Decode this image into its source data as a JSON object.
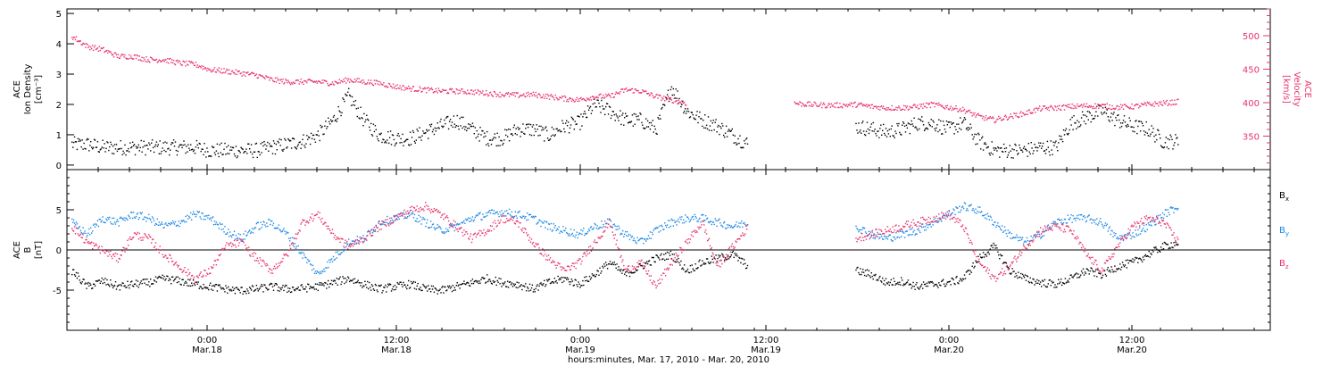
{
  "chart_data": [
    {
      "type": "scatter",
      "panel": "top",
      "ylabel_left": [
        "ACE",
        "Ion Density",
        "[cm⁻³]"
      ],
      "ylabel_right": [
        "ACE",
        "Velocity",
        "[km/s]"
      ],
      "ylim_left": [
        0,
        5
      ],
      "yticks_left": [
        0,
        1,
        2,
        3,
        4,
        5
      ],
      "ylim_right": [
        300,
        540
      ],
      "yticks_right": [
        350,
        400,
        450,
        500
      ],
      "colors": {
        "density": "#000000",
        "velocity": "#e8336a"
      },
      "series": [
        {
          "name": "Ion Density",
          "axis": "left",
          "x": [
            0,
            1,
            2,
            3,
            4,
            5,
            6,
            7,
            8,
            9,
            10,
            11,
            12,
            13,
            14,
            15,
            16,
            17,
            18,
            19,
            20,
            21,
            22,
            23,
            24,
            25,
            26,
            27,
            28,
            29,
            30,
            31,
            32,
            33,
            34,
            35,
            36,
            37,
            38,
            39,
            40,
            41,
            42,
            43,
            44,
            45,
            46,
            47,
            48,
            49,
            50,
            51,
            52,
            53,
            54,
            55,
            56,
            57,
            58,
            59,
            60,
            61,
            62,
            63,
            64,
            65,
            66,
            67,
            68,
            69,
            70,
            71,
            72
          ],
          "values": [
            0.7,
            0.7,
            0.6,
            0.6,
            0.6,
            0.6,
            0.6,
            0.6,
            0.6,
            0.5,
            0.5,
            0.5,
            0.5,
            0.6,
            0.7,
            0.8,
            1.0,
            1.5,
            2.3,
            1.5,
            1.0,
            0.9,
            0.9,
            1.1,
            1.3,
            1.5,
            1.2,
            0.9,
            0.9,
            1.2,
            1.2,
            1.0,
            1.3,
            1.4,
            2.0,
            1.8,
            1.5,
            1.5,
            1.2,
            2.6,
            1.8,
            1.5,
            1.3,
            1.0,
            0.7,
            null,
            null,
            null,
            null,
            null,
            null,
            1.3,
            1.2,
            1.1,
            1.2,
            1.4,
            1.4,
            1.2,
            1.4,
            0.8,
            0.5,
            0.5,
            0.5,
            0.6,
            0.6,
            1.4,
            1.6,
            1.8,
            1.5,
            1.3,
            1.2,
            0.8,
            0.8
          ]
        },
        {
          "name": "Velocity",
          "axis": "right",
          "x": [
            0,
            1,
            2,
            3,
            4,
            5,
            6,
            7,
            8,
            9,
            10,
            11,
            12,
            13,
            14,
            15,
            16,
            17,
            18,
            19,
            20,
            21,
            22,
            23,
            24,
            25,
            26,
            27,
            28,
            29,
            30,
            31,
            32,
            33,
            34,
            35,
            36,
            37,
            38,
            39,
            40,
            41,
            42,
            43,
            44,
            45,
            46,
            47,
            48,
            49,
            50,
            51,
            52,
            53,
            54,
            55,
            56,
            57,
            58,
            59,
            60,
            61,
            62,
            63,
            64,
            65,
            66,
            67,
            68,
            69,
            70,
            71,
            72
          ],
          "values": [
            500,
            485,
            480,
            470,
            470,
            465,
            465,
            460,
            458,
            450,
            448,
            445,
            442,
            435,
            432,
            432,
            432,
            430,
            435,
            432,
            430,
            425,
            422,
            420,
            418,
            418,
            417,
            415,
            413,
            412,
            413,
            410,
            407,
            405,
            410,
            410,
            420,
            418,
            410,
            405,
            400,
            null,
            null,
            null,
            null,
            null,
            null,
            400,
            398,
            397,
            397,
            398,
            395,
            393,
            393,
            395,
            398,
            394,
            390,
            380,
            375,
            380,
            385,
            392,
            393,
            395,
            396,
            396,
            394,
            395,
            398,
            400,
            402
          ]
        }
      ]
    },
    {
      "type": "scatter",
      "panel": "bottom",
      "ylabel_left": [
        "ACE",
        "B",
        "[nT]"
      ],
      "ylim": [
        -10,
        10
      ],
      "yticks": [
        -5,
        0,
        5
      ],
      "colors": {
        "Bx": "#000000",
        "By": "#1e88e5",
        "Bz": "#e8336a"
      },
      "legend": [
        "B",
        "B",
        "B"
      ],
      "legend_subscripts": [
        "x",
        "y",
        "z"
      ],
      "series": [
        {
          "name": "Bx",
          "x": [
            0,
            1,
            2,
            3,
            4,
            5,
            6,
            7,
            8,
            9,
            10,
            11,
            12,
            13,
            14,
            15,
            16,
            17,
            18,
            19,
            20,
            21,
            22,
            23,
            24,
            25,
            26,
            27,
            28,
            29,
            30,
            31,
            32,
            33,
            34,
            35,
            36,
            37,
            38,
            39,
            40,
            41,
            42,
            43,
            44,
            45,
            46,
            47,
            48,
            49,
            50,
            51,
            52,
            53,
            54,
            55,
            56,
            57,
            58,
            59,
            60,
            61,
            62,
            63,
            64,
            65,
            66,
            67,
            68,
            69,
            70,
            71,
            72
          ],
          "values": [
            -2.5,
            -4.5,
            -3.8,
            -4.5,
            -4.2,
            -4.0,
            -3.5,
            -3.8,
            -4.2,
            -4.5,
            -4.8,
            -5.0,
            -4.8,
            -4.5,
            -4.8,
            -4.7,
            -4.5,
            -4.0,
            -3.5,
            -4.2,
            -4.8,
            -4.5,
            -4.2,
            -4.8,
            -5.0,
            -4.5,
            -4.0,
            -3.5,
            -4.0,
            -4.2,
            -4.8,
            -4.0,
            -3.5,
            -4.2,
            -3.0,
            -1.5,
            -3.0,
            -2.0,
            -1.0,
            -0.5,
            -2.5,
            -1.5,
            -1.0,
            -0.5,
            -2.0,
            null,
            null,
            null,
            null,
            null,
            null,
            -2.5,
            -3.0,
            -4.0,
            -3.8,
            -4.5,
            -4.2,
            -4.0,
            -3.5,
            -1.0,
            0.5,
            -2.5,
            -3.5,
            -4.0,
            -4.2,
            -3.5,
            -2.5,
            -3.0,
            -2.0,
            -1.5,
            -0.5,
            0.5,
            1.0
          ]
        },
        {
          "name": "By",
          "x": [
            0,
            1,
            2,
            3,
            4,
            5,
            6,
            7,
            8,
            9,
            10,
            11,
            12,
            13,
            14,
            15,
            16,
            17,
            18,
            19,
            20,
            21,
            22,
            23,
            24,
            25,
            26,
            27,
            28,
            29,
            30,
            31,
            32,
            33,
            34,
            35,
            36,
            37,
            38,
            39,
            40,
            41,
            42,
            43,
            44,
            45,
            46,
            47,
            48,
            49,
            50,
            51,
            52,
            53,
            54,
            55,
            56,
            57,
            58,
            59,
            60,
            61,
            62,
            63,
            64,
            65,
            66,
            67,
            68,
            69,
            70,
            71,
            72
          ],
          "values": [
            3.5,
            2.0,
            4.0,
            3.5,
            4.5,
            4.0,
            3.0,
            3.5,
            4.5,
            4.0,
            2.5,
            1.5,
            3.0,
            3.5,
            2.0,
            -0.5,
            -3.0,
            -1.0,
            1.0,
            1.5,
            3.5,
            4.0,
            4.5,
            3.5,
            2.5,
            3.0,
            4.0,
            4.5,
            4.8,
            4.5,
            4.0,
            3.0,
            2.5,
            2.0,
            3.0,
            3.5,
            2.0,
            1.0,
            2.5,
            3.5,
            4.0,
            4.0,
            3.5,
            3.0,
            3.5,
            null,
            null,
            null,
            null,
            null,
            null,
            3.0,
            2.0,
            1.5,
            2.0,
            2.5,
            3.5,
            4.5,
            5.5,
            5.0,
            3.5,
            2.0,
            1.0,
            2.0,
            3.5,
            4.0,
            4.0,
            3.5,
            1.5,
            2.0,
            3.0,
            4.5,
            5.5
          ]
        },
        {
          "name": "Bz",
          "x": [
            0,
            1,
            2,
            3,
            4,
            5,
            6,
            7,
            8,
            9,
            10,
            11,
            12,
            13,
            14,
            15,
            16,
            17,
            18,
            19,
            20,
            21,
            22,
            23,
            24,
            25,
            26,
            27,
            28,
            29,
            30,
            31,
            32,
            33,
            34,
            35,
            36,
            37,
            38,
            39,
            40,
            41,
            42,
            43,
            44,
            45,
            46,
            47,
            48,
            49,
            50,
            51,
            52,
            53,
            54,
            55,
            56,
            57,
            58,
            59,
            60,
            61,
            62,
            63,
            64,
            65,
            66,
            67,
            68,
            69,
            70,
            71,
            72
          ],
          "values": [
            3.0,
            1.0,
            0.0,
            -1.0,
            2.0,
            1.5,
            -0.5,
            -2.0,
            -3.5,
            -2.5,
            0.5,
            1.0,
            -1.0,
            -2.5,
            -0.5,
            3.5,
            4.5,
            2.0,
            0.5,
            1.5,
            3.0,
            4.0,
            5.0,
            5.5,
            4.5,
            3.0,
            1.5,
            2.5,
            4.0,
            3.5,
            1.0,
            -1.0,
            -2.5,
            -1.5,
            1.0,
            3.5,
            -2.5,
            -1.5,
            -4.5,
            -1.5,
            1.0,
            3.5,
            -2.0,
            0.5,
            3.0,
            null,
            null,
            null,
            null,
            null,
            null,
            1.5,
            2.0,
            2.5,
            3.0,
            3.5,
            4.0,
            4.5,
            3.0,
            -1.5,
            -3.5,
            -2.0,
            0.5,
            2.5,
            3.0,
            2.5,
            -0.5,
            -2.5,
            0.5,
            3.0,
            4.0,
            3.5,
            1.0
          ]
        }
      ]
    }
  ],
  "x_axis": {
    "ticks": [
      {
        "time": "0:00",
        "date": "Mar.18"
      },
      {
        "time": "12:00",
        "date": "Mar.18"
      },
      {
        "time": "0:00",
        "date": "Mar.19"
      },
      {
        "time": "12:00",
        "date": "Mar.19"
      },
      {
        "time": "0:00",
        "date": "Mar.20"
      },
      {
        "time": "12:00",
        "date": "Mar.20"
      }
    ],
    "xlabel": "hours:minutes, Mar. 17, 2010 - Mar. 20, 2010"
  }
}
